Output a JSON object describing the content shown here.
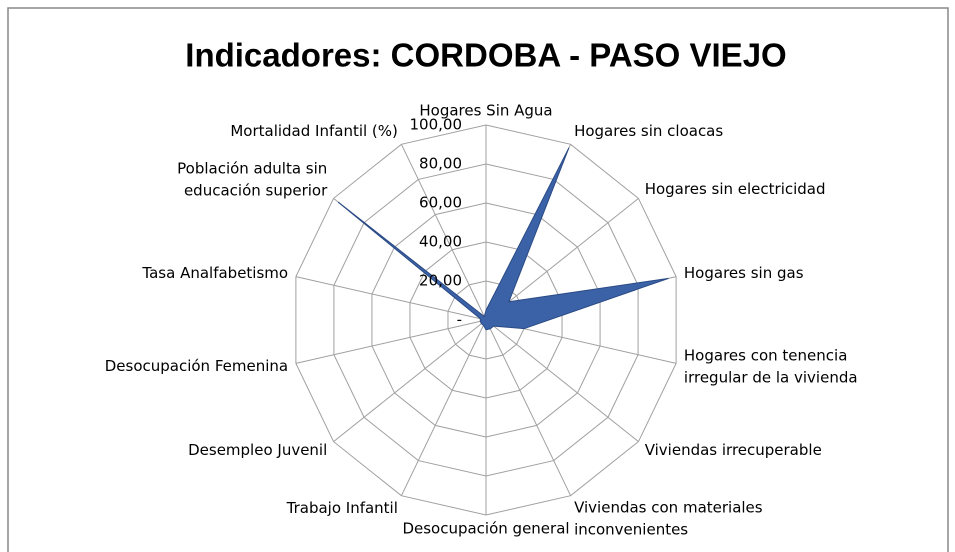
{
  "chart_data": {
    "type": "radar",
    "title": "Indicadores: CORDOBA - PASO VIEJO",
    "categories": [
      "Hogares Sin Agua",
      "Hogares sin cloacas",
      "Hogares sin electricidad",
      "Hogares sin gas",
      "Hogares con tenencia irregular de la vivienda",
      "Viviendas irrecuperable",
      "Viviendas con materiales inconvenientes",
      "Desocupación general",
      "Trabajo Infantil",
      "Desempleo Juvenil",
      "Desocupación Femenina",
      "Tasa Analfabetismo",
      "Población adulta  sin educación superior",
      "Mortalidad Infantil (%)"
    ],
    "series": [
      {
        "name": "CORDOBA - PASO VIEJO",
        "color": "#3b62a6",
        "values": [
          5,
          98,
          15,
          96,
          20,
          5,
          5,
          5,
          3,
          3,
          3,
          3,
          97,
          2
        ]
      }
    ],
    "ylim": [
      0,
      100
    ],
    "yticks": [
      {
        "value": 0,
        "label": "-"
      },
      {
        "value": 20,
        "label": "20,00"
      },
      {
        "value": 40,
        "label": "40,00"
      },
      {
        "value": 60,
        "label": "60,00"
      },
      {
        "value": 80,
        "label": "80,00"
      },
      {
        "value": 100,
        "label": "100,00"
      }
    ],
    "grid": true
  }
}
